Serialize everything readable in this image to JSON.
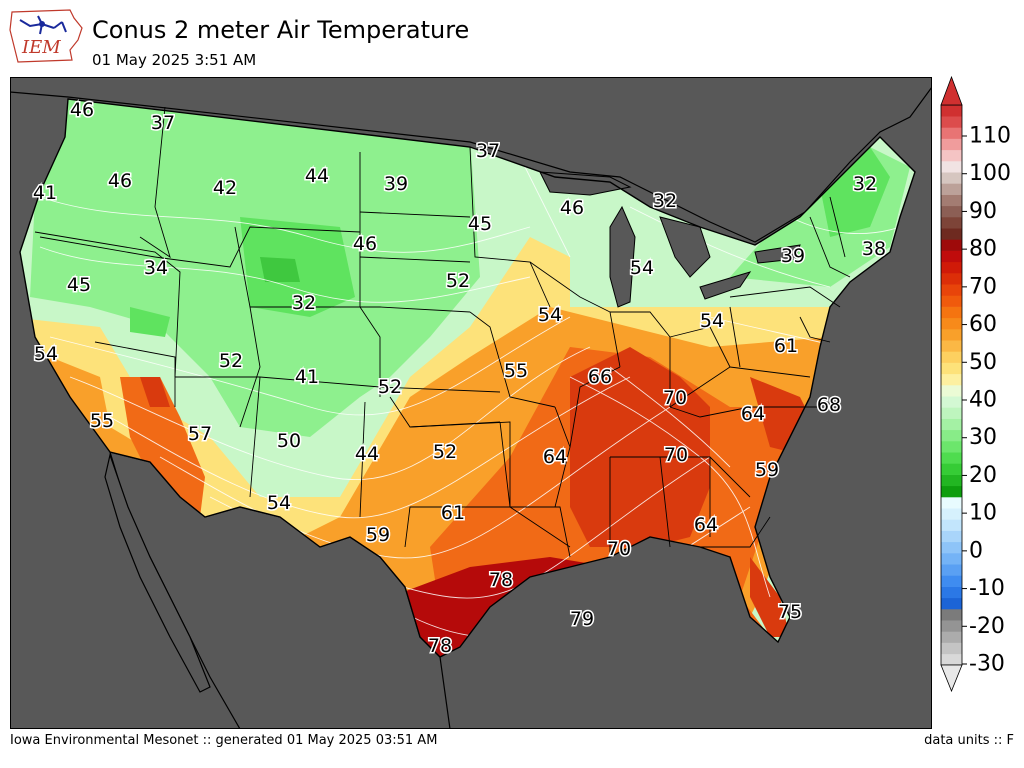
{
  "header": {
    "logo_text": "IEM",
    "title": "Conus 2 meter Air Temperature",
    "subtitle": "01 May 2025 3:51 AM"
  },
  "footer": {
    "left": "Iowa Environmental Mesonet :: generated 01 May 2025 03:51 AM",
    "right": "data units :: F"
  },
  "colors": {
    "ocean": "#585858",
    "land_cool": "#8ef08e",
    "land_pale": "#c8f7c8",
    "land_green": "#5fe35f",
    "warm_yellow": "#fde27a",
    "warm_orange": "#f9a02a",
    "hot_orange": "#f16a16",
    "hot_red": "#d93a0e",
    "deep_red": "#b50a0a",
    "outline": "#000000",
    "contour": "#ffffff"
  },
  "colorbar": {
    "ticks": [
      "110",
      "100",
      "90",
      "80",
      "70",
      "60",
      "50",
      "40",
      "30",
      "20",
      "10",
      "0",
      "-10",
      "-20",
      "-30"
    ],
    "bins": [
      "#d9d9d9",
      "#c4c4c4",
      "#acacac",
      "#949494",
      "#7b7b7b",
      "#1c64d6",
      "#2b78e6",
      "#3f8cf0",
      "#5aa0f3",
      "#74b3f6",
      "#8ec4f8",
      "#a9d5fa",
      "#c2e5fc",
      "#d6f1fd",
      "#e8fbfe",
      "#0e9e0e",
      "#22b622",
      "#36cc36",
      "#4fdc4f",
      "#6ce66c",
      "#88ec88",
      "#a4f1a4",
      "#bef5be",
      "#d3f8d3",
      "#ebfbd5",
      "#fdf0a0",
      "#fde27a",
      "#fdd060",
      "#fbb845",
      "#f9a02a",
      "#f78a1a",
      "#f57410",
      "#f05a0c",
      "#e8440a",
      "#dc2e08",
      "#d01a08",
      "#c00c0c",
      "#9e0a0a",
      "#6e2a20",
      "#7d4438",
      "#8c5f55",
      "#a37c72",
      "#bca199",
      "#d6c6c0",
      "#f1e3e3",
      "#f5c4c4",
      "#f09c9c",
      "#e87474",
      "#dc4c4c",
      "#d03030"
    ]
  },
  "map": {
    "values": [
      {
        "v": "46"
      },
      {
        "v": "37"
      },
      {
        "v": "37"
      },
      {
        "v": "41"
      },
      {
        "v": "46"
      },
      {
        "v": "42"
      },
      {
        "v": "44"
      },
      {
        "v": "39"
      },
      {
        "v": "46"
      },
      {
        "v": "32"
      },
      {
        "v": "32"
      },
      {
        "v": "45"
      },
      {
        "v": "46"
      },
      {
        "v": "34"
      },
      {
        "v": "45"
      },
      {
        "v": "52"
      },
      {
        "v": "54"
      },
      {
        "v": "39"
      },
      {
        "v": "38"
      },
      {
        "v": "32"
      },
      {
        "v": "54"
      },
      {
        "v": "54"
      },
      {
        "v": "54"
      },
      {
        "v": "61"
      },
      {
        "v": "52"
      },
      {
        "v": "41"
      },
      {
        "v": "52"
      },
      {
        "v": "55"
      },
      {
        "v": "66"
      },
      {
        "v": "70"
      },
      {
        "v": "68"
      },
      {
        "v": "64"
      },
      {
        "v": "55"
      },
      {
        "v": "57"
      },
      {
        "v": "50"
      },
      {
        "v": "44"
      },
      {
        "v": "52"
      },
      {
        "v": "64"
      },
      {
        "v": "70"
      },
      {
        "v": "59"
      },
      {
        "v": "54"
      },
      {
        "v": "61"
      },
      {
        "v": "64"
      },
      {
        "v": "59"
      },
      {
        "v": "70"
      },
      {
        "v": "78"
      },
      {
        "v": "79"
      },
      {
        "v": "75"
      },
      {
        "v": "78"
      }
    ]
  }
}
